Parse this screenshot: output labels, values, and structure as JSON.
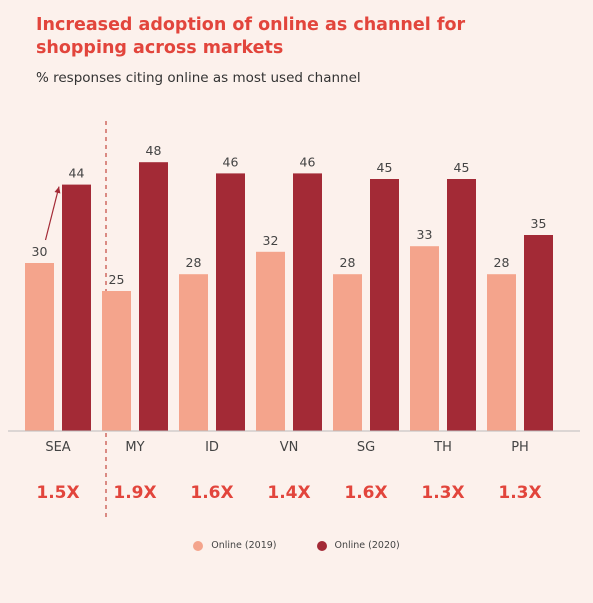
{
  "header": {
    "title": "Increased adoption of online as channel for shopping across markets",
    "subtitle": "% responses citing online as most used channel"
  },
  "colors": {
    "series_2019": "#f4a48c",
    "series_2020": "#a32a36",
    "accent": "#e2453c",
    "background": "#fcf1ec",
    "baseline": "#bbbbbb",
    "divider": "#c4453e"
  },
  "chart_data": {
    "type": "bar",
    "categories": [
      "SEA",
      "MY",
      "ID",
      "VN",
      "SG",
      "TH",
      "PH"
    ],
    "series": [
      {
        "name": "Online (2019)",
        "values": [
          30,
          25,
          28,
          32,
          28,
          33,
          28
        ]
      },
      {
        "name": "Online (2020)",
        "values": [
          44,
          48,
          46,
          46,
          45,
          45,
          35
        ]
      }
    ],
    "growth_labels": [
      "1.5X",
      "1.9X",
      "1.6X",
      "1.4X",
      "1.6X",
      "1.3X",
      "1.3X"
    ],
    "title": "Increased adoption of online as channel for shopping across markets",
    "subtitle": "% responses citing online as most used channel",
    "xlabel": "",
    "ylabel": "",
    "ylim": [
      0,
      50
    ],
    "grid": false,
    "legend": "bottom"
  },
  "legend": {
    "items": [
      {
        "label": "Online (2019)"
      },
      {
        "label": "Online (2020)"
      }
    ]
  }
}
